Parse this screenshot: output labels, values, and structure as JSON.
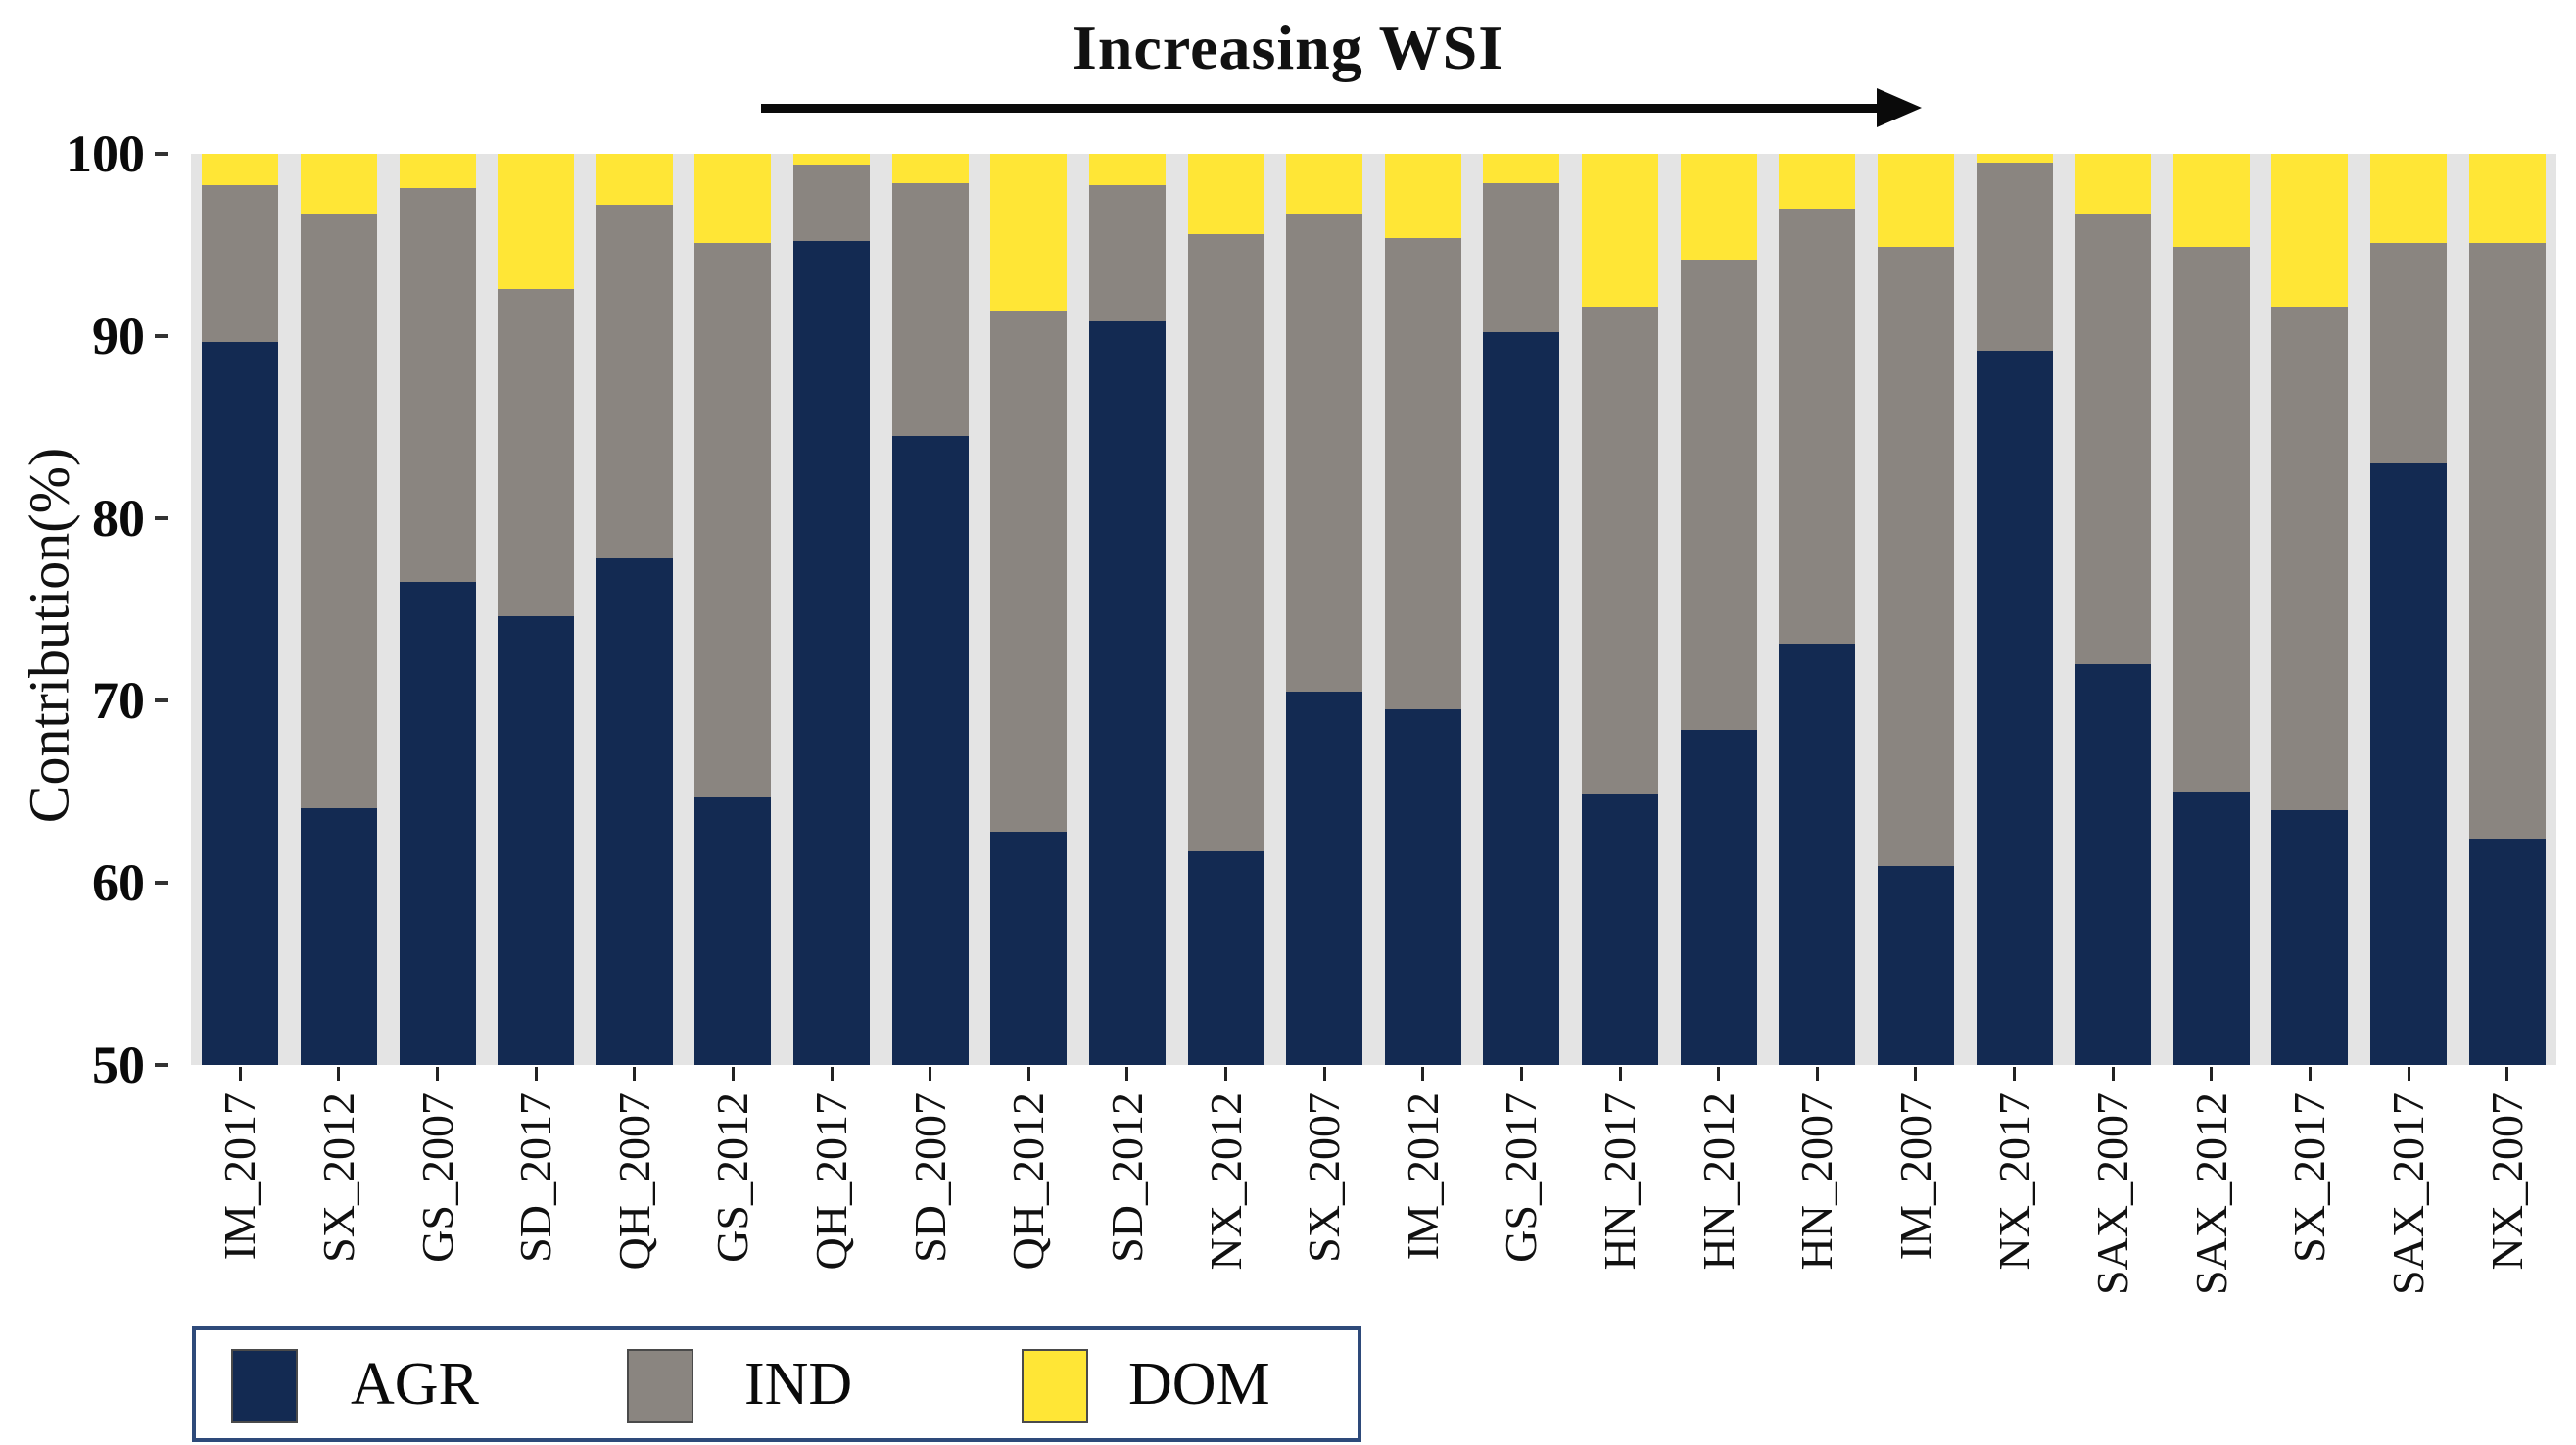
{
  "title": "Increasing WSI",
  "y_axis": {
    "label": "Contribution(%)",
    "min": 50,
    "max": 100,
    "ticks": [
      100,
      90,
      80,
      70,
      60,
      50
    ]
  },
  "legend": [
    {
      "label": "AGR",
      "color": "#132a52"
    },
    {
      "label": "IND",
      "color": "#8a8580"
    },
    {
      "label": "DOM",
      "color": "#ffe636"
    }
  ],
  "colors": {
    "agr": "#132a52",
    "ind": "#8a8580",
    "dom": "#ffe636",
    "plot_background": "#e4e4e4",
    "legend_border": "#2e4a7a"
  },
  "chart_data": {
    "type": "bar",
    "stacked": true,
    "title": "Increasing WSI",
    "xlabel": "",
    "ylabel": "Contribution(%)",
    "ylim": [
      50,
      100
    ],
    "grid": false,
    "legend_position": "bottom-left",
    "categories": [
      "IM_2017",
      "SX_2012",
      "GS_2007",
      "SD_2017",
      "QH_2007",
      "GS_2012",
      "QH_2017",
      "SD_2007",
      "QH_2012",
      "SD_2012",
      "NX_2012",
      "SX_2007",
      "IM_2012",
      "GS_2017",
      "HN_2017",
      "HN_2012",
      "HN_2007",
      "IM_2007",
      "NX_2017",
      "SAX_2007",
      "SAX_2012",
      "SX_2017",
      "SAX_2017",
      "NX_2007"
    ],
    "series": [
      {
        "name": "AGR",
        "color": "#132a52",
        "values": [
          89.7,
          64.1,
          76.5,
          74.6,
          77.8,
          64.7,
          95.2,
          84.5,
          62.8,
          90.8,
          61.7,
          70.5,
          69.5,
          90.2,
          64.9,
          68.4,
          73.1,
          60.9,
          89.2,
          72.0,
          65.0,
          64.0,
          83.0,
          62.4
        ]
      },
      {
        "name": "IND",
        "color": "#8a8580",
        "values": [
          8.6,
          32.6,
          21.6,
          18.0,
          19.4,
          30.4,
          4.2,
          13.9,
          28.6,
          7.5,
          33.9,
          26.2,
          25.9,
          8.2,
          26.7,
          25.8,
          23.9,
          34.0,
          10.3,
          24.7,
          29.9,
          27.6,
          12.1,
          32.7
        ]
      },
      {
        "name": "DOM",
        "color": "#ffe636",
        "values": [
          1.7,
          3.3,
          1.9,
          7.4,
          2.8,
          4.9,
          0.6,
          1.6,
          8.6,
          1.7,
          4.4,
          3.3,
          4.6,
          1.6,
          8.4,
          5.8,
          3.0,
          5.1,
          0.5,
          3.3,
          5.1,
          8.4,
          4.9,
          4.9
        ]
      }
    ],
    "annotation_arrow": "left-to-right arrow under title spanning middle bars"
  }
}
